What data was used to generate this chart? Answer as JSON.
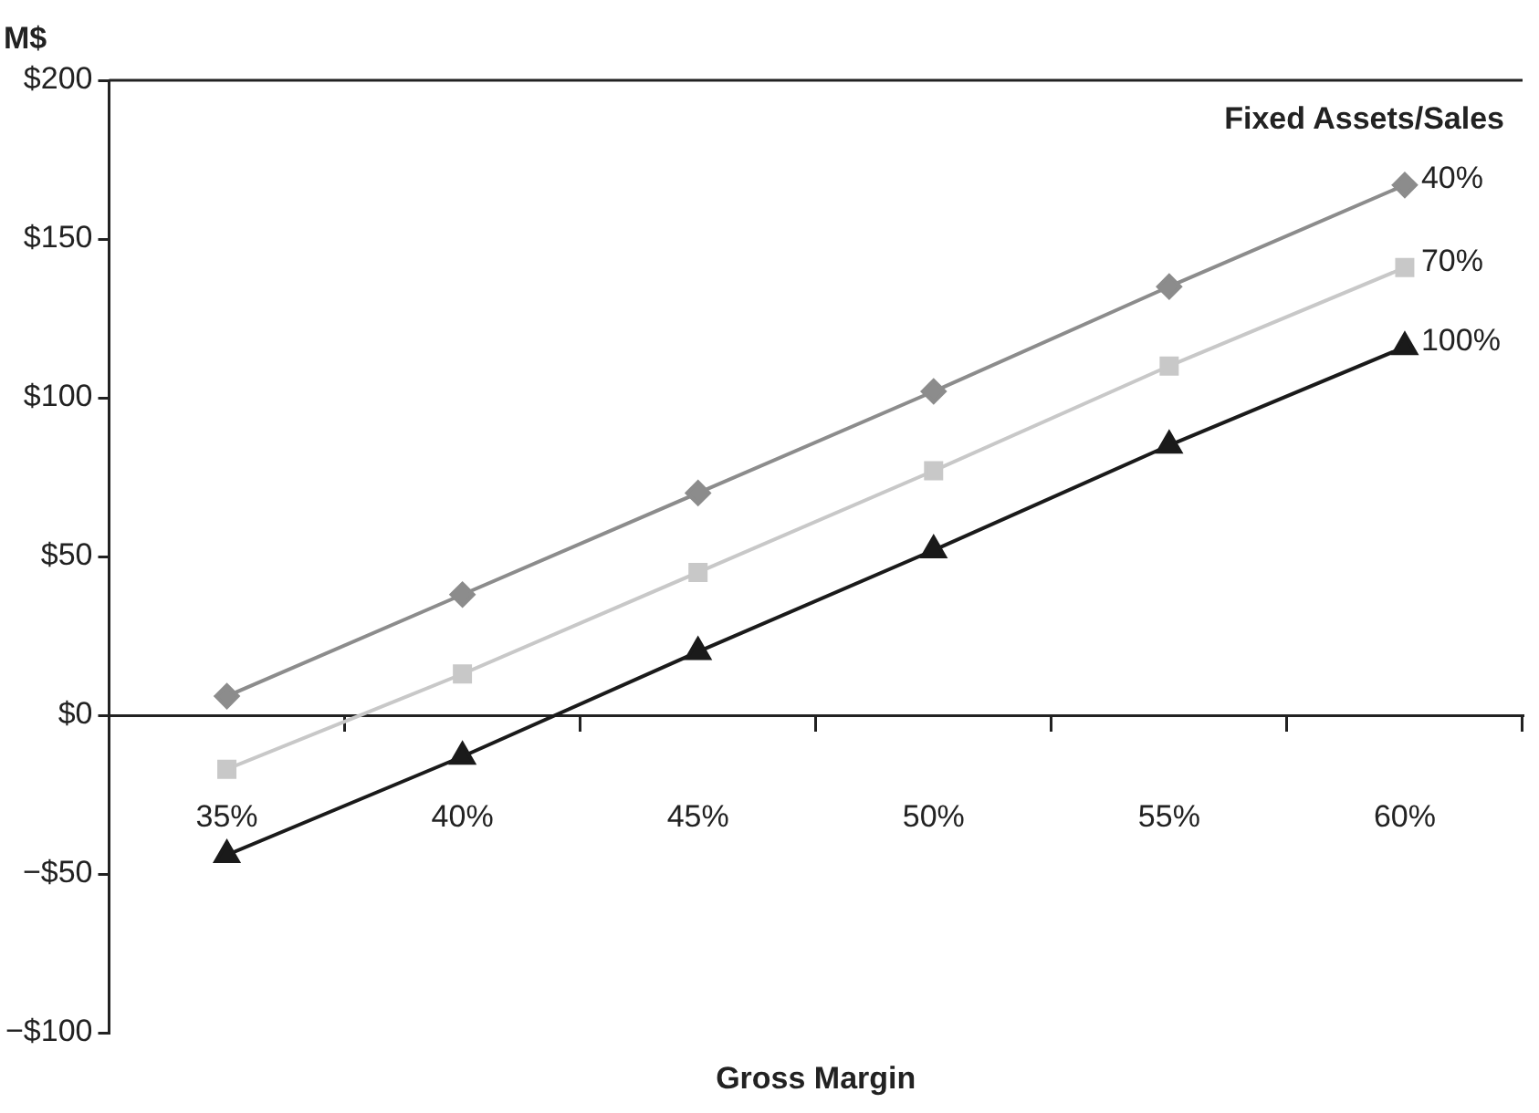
{
  "chart_data": {
    "type": "line",
    "xlabel": "Gross Margin",
    "ylabel": "M$",
    "legend_title": "Fixed Assets/Sales",
    "categories": [
      "35%",
      "40%",
      "45%",
      "50%",
      "55%",
      "60%"
    ],
    "ylim": [
      -100,
      200
    ],
    "yticks": [
      {
        "value": -100,
        "label": "−$100"
      },
      {
        "value": -50,
        "label": "−$50"
      },
      {
        "value": 0,
        "label": "$0"
      },
      {
        "value": 50,
        "label": "$50"
      },
      {
        "value": 100,
        "label": "$100"
      },
      {
        "value": 150,
        "label": "$150"
      },
      {
        "value": 200,
        "label": "$200"
      }
    ],
    "legend": false,
    "line_style": "solid",
    "series": [
      {
        "name": "40%",
        "color": "#8c8c8c",
        "marker": "diamond",
        "values": [
          6,
          38,
          70,
          102,
          135,
          167
        ]
      },
      {
        "name": "70%",
        "color": "#c8c8c8",
        "marker": "square",
        "values": [
          -17,
          13,
          45,
          77,
          110,
          141
        ]
      },
      {
        "name": "100%",
        "color": "#1a1a1a",
        "marker": "triangle",
        "values": [
          -44,
          -13,
          20,
          52,
          85,
          116
        ]
      }
    ]
  }
}
